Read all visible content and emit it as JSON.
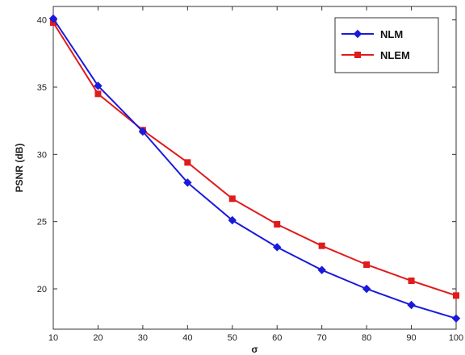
{
  "chart_data": {
    "type": "line",
    "title": "",
    "xlabel": "σ",
    "ylabel": "PSNR (dB)",
    "x": [
      10,
      20,
      30,
      40,
      50,
      60,
      70,
      80,
      90,
      100
    ],
    "xlim": [
      10,
      100
    ],
    "ylim": [
      17,
      41
    ],
    "x_ticks": [
      "10",
      "20",
      "30",
      "40",
      "50",
      "60",
      "70",
      "80",
      "90",
      "100"
    ],
    "y_ticks": [
      "20",
      "25",
      "30",
      "35",
      "40"
    ],
    "grid": false,
    "legend_position": "top-right",
    "series": [
      {
        "name": "NLM",
        "color": "#1a1adb",
        "marker": "diamond",
        "values": [
          40.1,
          35.1,
          31.7,
          27.9,
          25.1,
          23.1,
          21.4,
          20.0,
          18.8,
          17.8
        ]
      },
      {
        "name": "NLEM",
        "color": "#e01b1b",
        "marker": "square",
        "values": [
          39.8,
          34.5,
          31.8,
          29.4,
          26.7,
          24.8,
          23.2,
          21.8,
          20.6,
          19.5
        ]
      }
    ]
  }
}
